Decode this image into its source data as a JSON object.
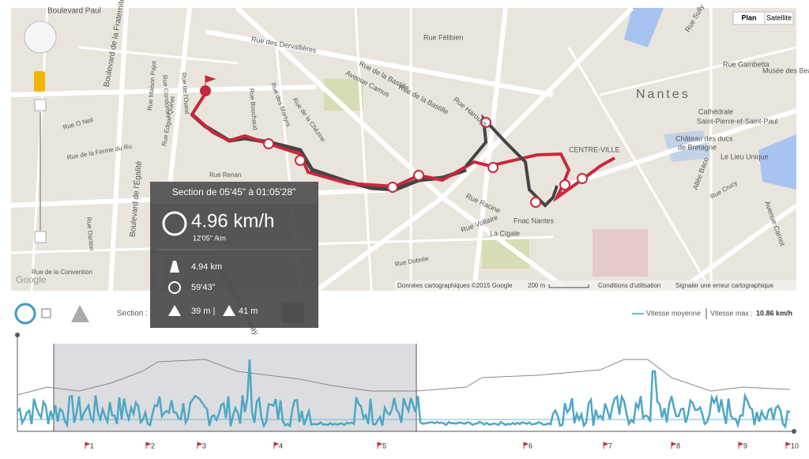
{
  "map": {
    "buttons": [
      "Plan",
      "Satellite"
    ],
    "labels": [
      "Boulevard Paul",
      "Rue des Dervallières",
      "Rue Félibien",
      "Rue de la Bastille",
      "Avenue Camus",
      "Rue de la Bastille",
      "Rue Harouys",
      "Nantes",
      "Rue Gambetta",
      "Musée des Beau",
      "Cathédrale",
      "Saint-Pierre-et-Saint-Paul",
      "Château des ducs",
      "de Bretagne",
      "Le Lieu Unique",
      "Allée Baco",
      "Avenue Carnot",
      "Rue Racine",
      "Fnac Nantes",
      "La Cigale",
      "Rue Voltaire",
      "Boulevard de Launay",
      "Boulevard de l'Égalité",
      "Boulevard de la Fraternité",
      "Rue Condorcet",
      "Rue de l'Ouest",
      "Rue Maison Pajot",
      "Rue Edgar Quinet",
      "Rue de la Ferme du Ru",
      "Rue Danton",
      "Rue Sully",
      "CENTRE-VILLE",
      "Rue Bouchaud",
      "Rue des Martyrs",
      "Rue de la Chézine",
      "Rue Renan",
      "Rue O Neil",
      "Rue de la Convention",
      "Rue Dobrée",
      "Rue Crucy"
    ],
    "attribution": {
      "logo": "Google",
      "data": "Données cartographiques ©2015 Google",
      "scale": "200 m",
      "terms": "Conditions d'utilisation",
      "report": "Signaler une erreur cartographique"
    }
  },
  "tooltip": {
    "title": "Section de 05'45\" à 01:05'28\"",
    "speed": "4.96 km/h",
    "pace": "12'05\" /km",
    "distance": "4.94 km",
    "duration": "59'43\"",
    "ascent": "39 m |",
    "descent": "41 m"
  },
  "toolbar": {
    "section": "Section :",
    "legend": "Vitesse moyenne",
    "max_label": "Vitesse max :",
    "max_value": "10.86 km/h"
  },
  "markers": [
    "1",
    "2",
    "3",
    "4",
    "5",
    "6",
    "7",
    "8",
    "9",
    "10"
  ]
}
